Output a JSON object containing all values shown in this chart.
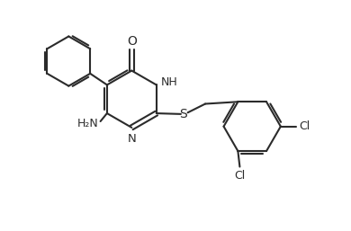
{
  "bg_color": "#ffffff",
  "line_color": "#2b2b2b",
  "line_width": 1.5,
  "figsize": [
    3.9,
    2.57
  ],
  "dpi": 100,
  "xlim": [
    0,
    9.5
  ],
  "ylim": [
    0,
    6.3
  ]
}
